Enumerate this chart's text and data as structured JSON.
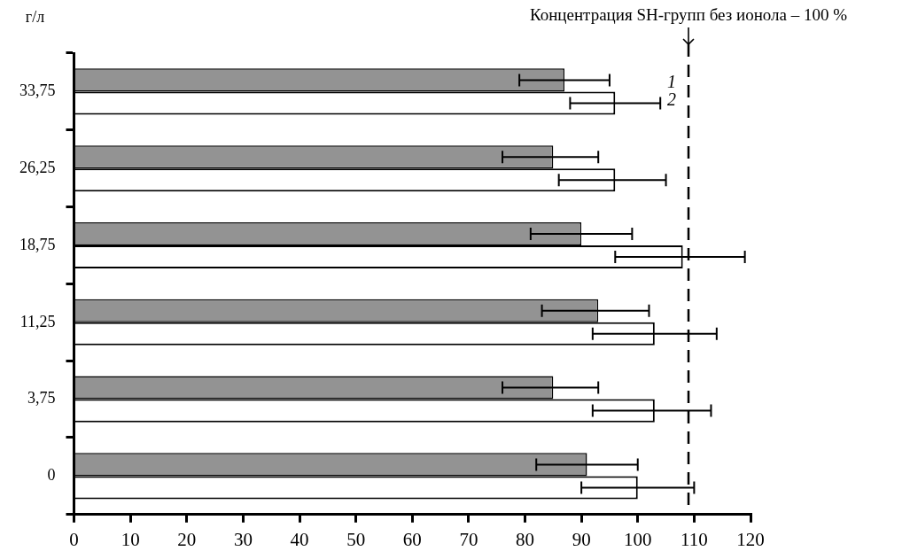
{
  "chart_data": {
    "type": "bar",
    "orientation": "horizontal",
    "ylabel": "г/л",
    "categories": [
      "33,75",
      "26,25",
      "18,75",
      "11,25",
      "3,75",
      "0"
    ],
    "series": [
      {
        "name": "1",
        "color": "#939393",
        "values": [
          87,
          85,
          90,
          93,
          85,
          91
        ],
        "errors": [
          [
            79,
            95
          ],
          [
            76,
            93
          ],
          [
            81,
            99
          ],
          [
            83,
            102
          ],
          [
            76,
            93
          ],
          [
            82,
            100
          ]
        ]
      },
      {
        "name": "2",
        "color": "#ffffff",
        "values": [
          96,
          96,
          108,
          103,
          103,
          100
        ],
        "errors": [
          [
            88,
            104
          ],
          [
            86,
            105
          ],
          [
            96,
            119
          ],
          [
            92,
            114
          ],
          [
            92,
            113
          ],
          [
            90,
            110
          ]
        ]
      }
    ],
    "xlim": [
      0,
      120
    ],
    "xticks": [
      0,
      10,
      20,
      30,
      40,
      50,
      60,
      70,
      80,
      90,
      100,
      110,
      120
    ],
    "ref_lines": [
      {
        "axis": "x",
        "value": 109,
        "label": "Концентрация SH-групп без ионола – 100 %",
        "line_style": "dashed"
      }
    ],
    "grid": false,
    "legend": false
  }
}
